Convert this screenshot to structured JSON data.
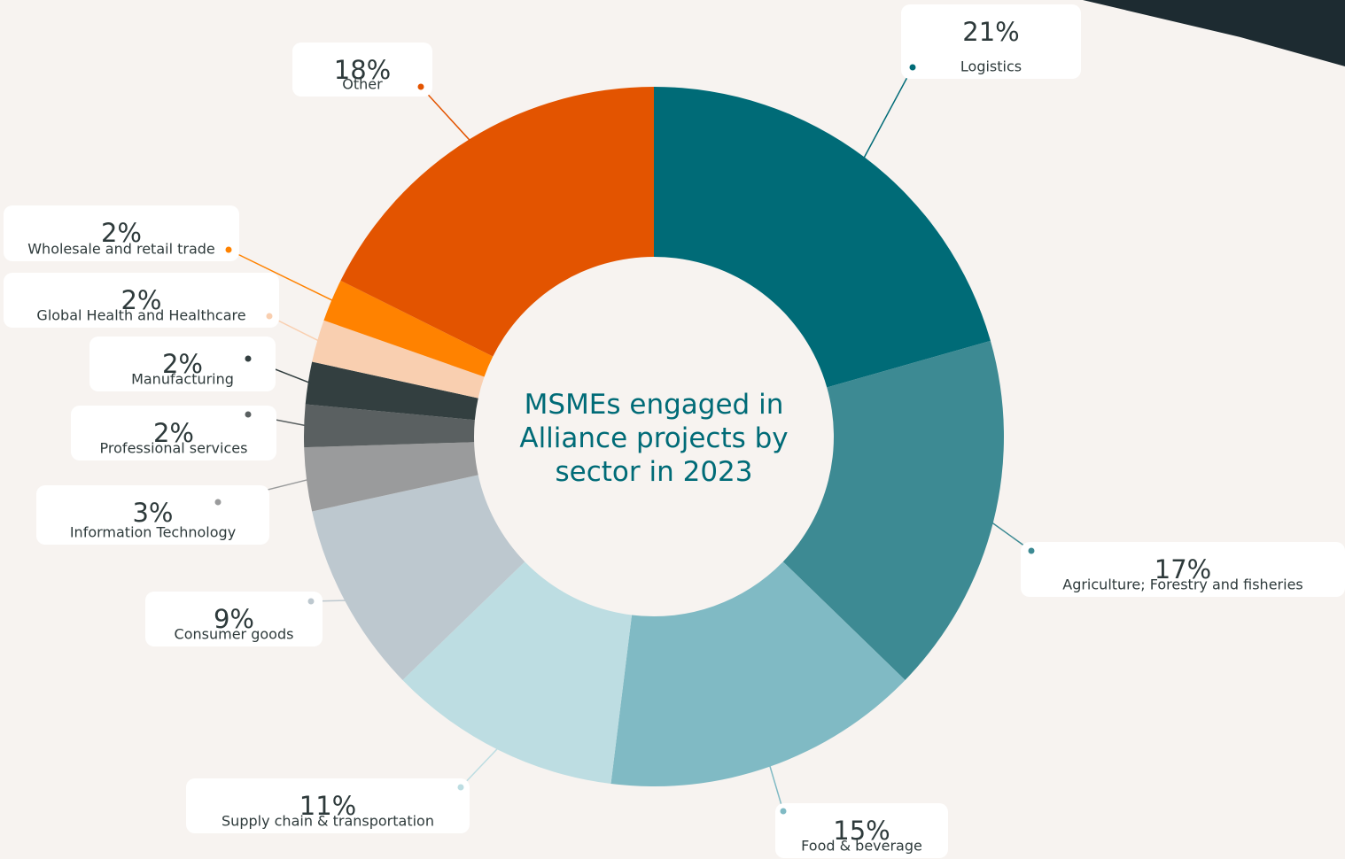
{
  "chart_data": {
    "type": "donut",
    "title": "MSMEs engaged in Alliance projects by sector in 2023",
    "categories": [
      "Logistics",
      "Agriculture; Forestry and fisheries",
      "Food & beverage",
      "Supply chain & transportation",
      "Consumer goods",
      "Information Technology",
      "Professional services",
      "Manufacturing",
      "Global Health and Healthcare",
      "Wholesale and retail trade",
      "Other"
    ],
    "values": [
      21,
      17,
      15,
      11,
      9,
      3,
      2,
      2,
      2,
      2,
      18
    ],
    "value_labels": [
      "21%",
      "17%",
      "15%",
      "11%",
      "9%",
      "3%",
      "2%",
      "2%",
      "2%",
      "2%",
      "18%"
    ],
    "colors": [
      "#006b77",
      "#3d8a93",
      "#80bac4",
      "#bddde2",
      "#bdc8cf",
      "#9a9b9c",
      "#5a6061",
      "#333f40",
      "#f9cfb0",
      "#ff8200",
      "#e35400"
    ]
  }
}
